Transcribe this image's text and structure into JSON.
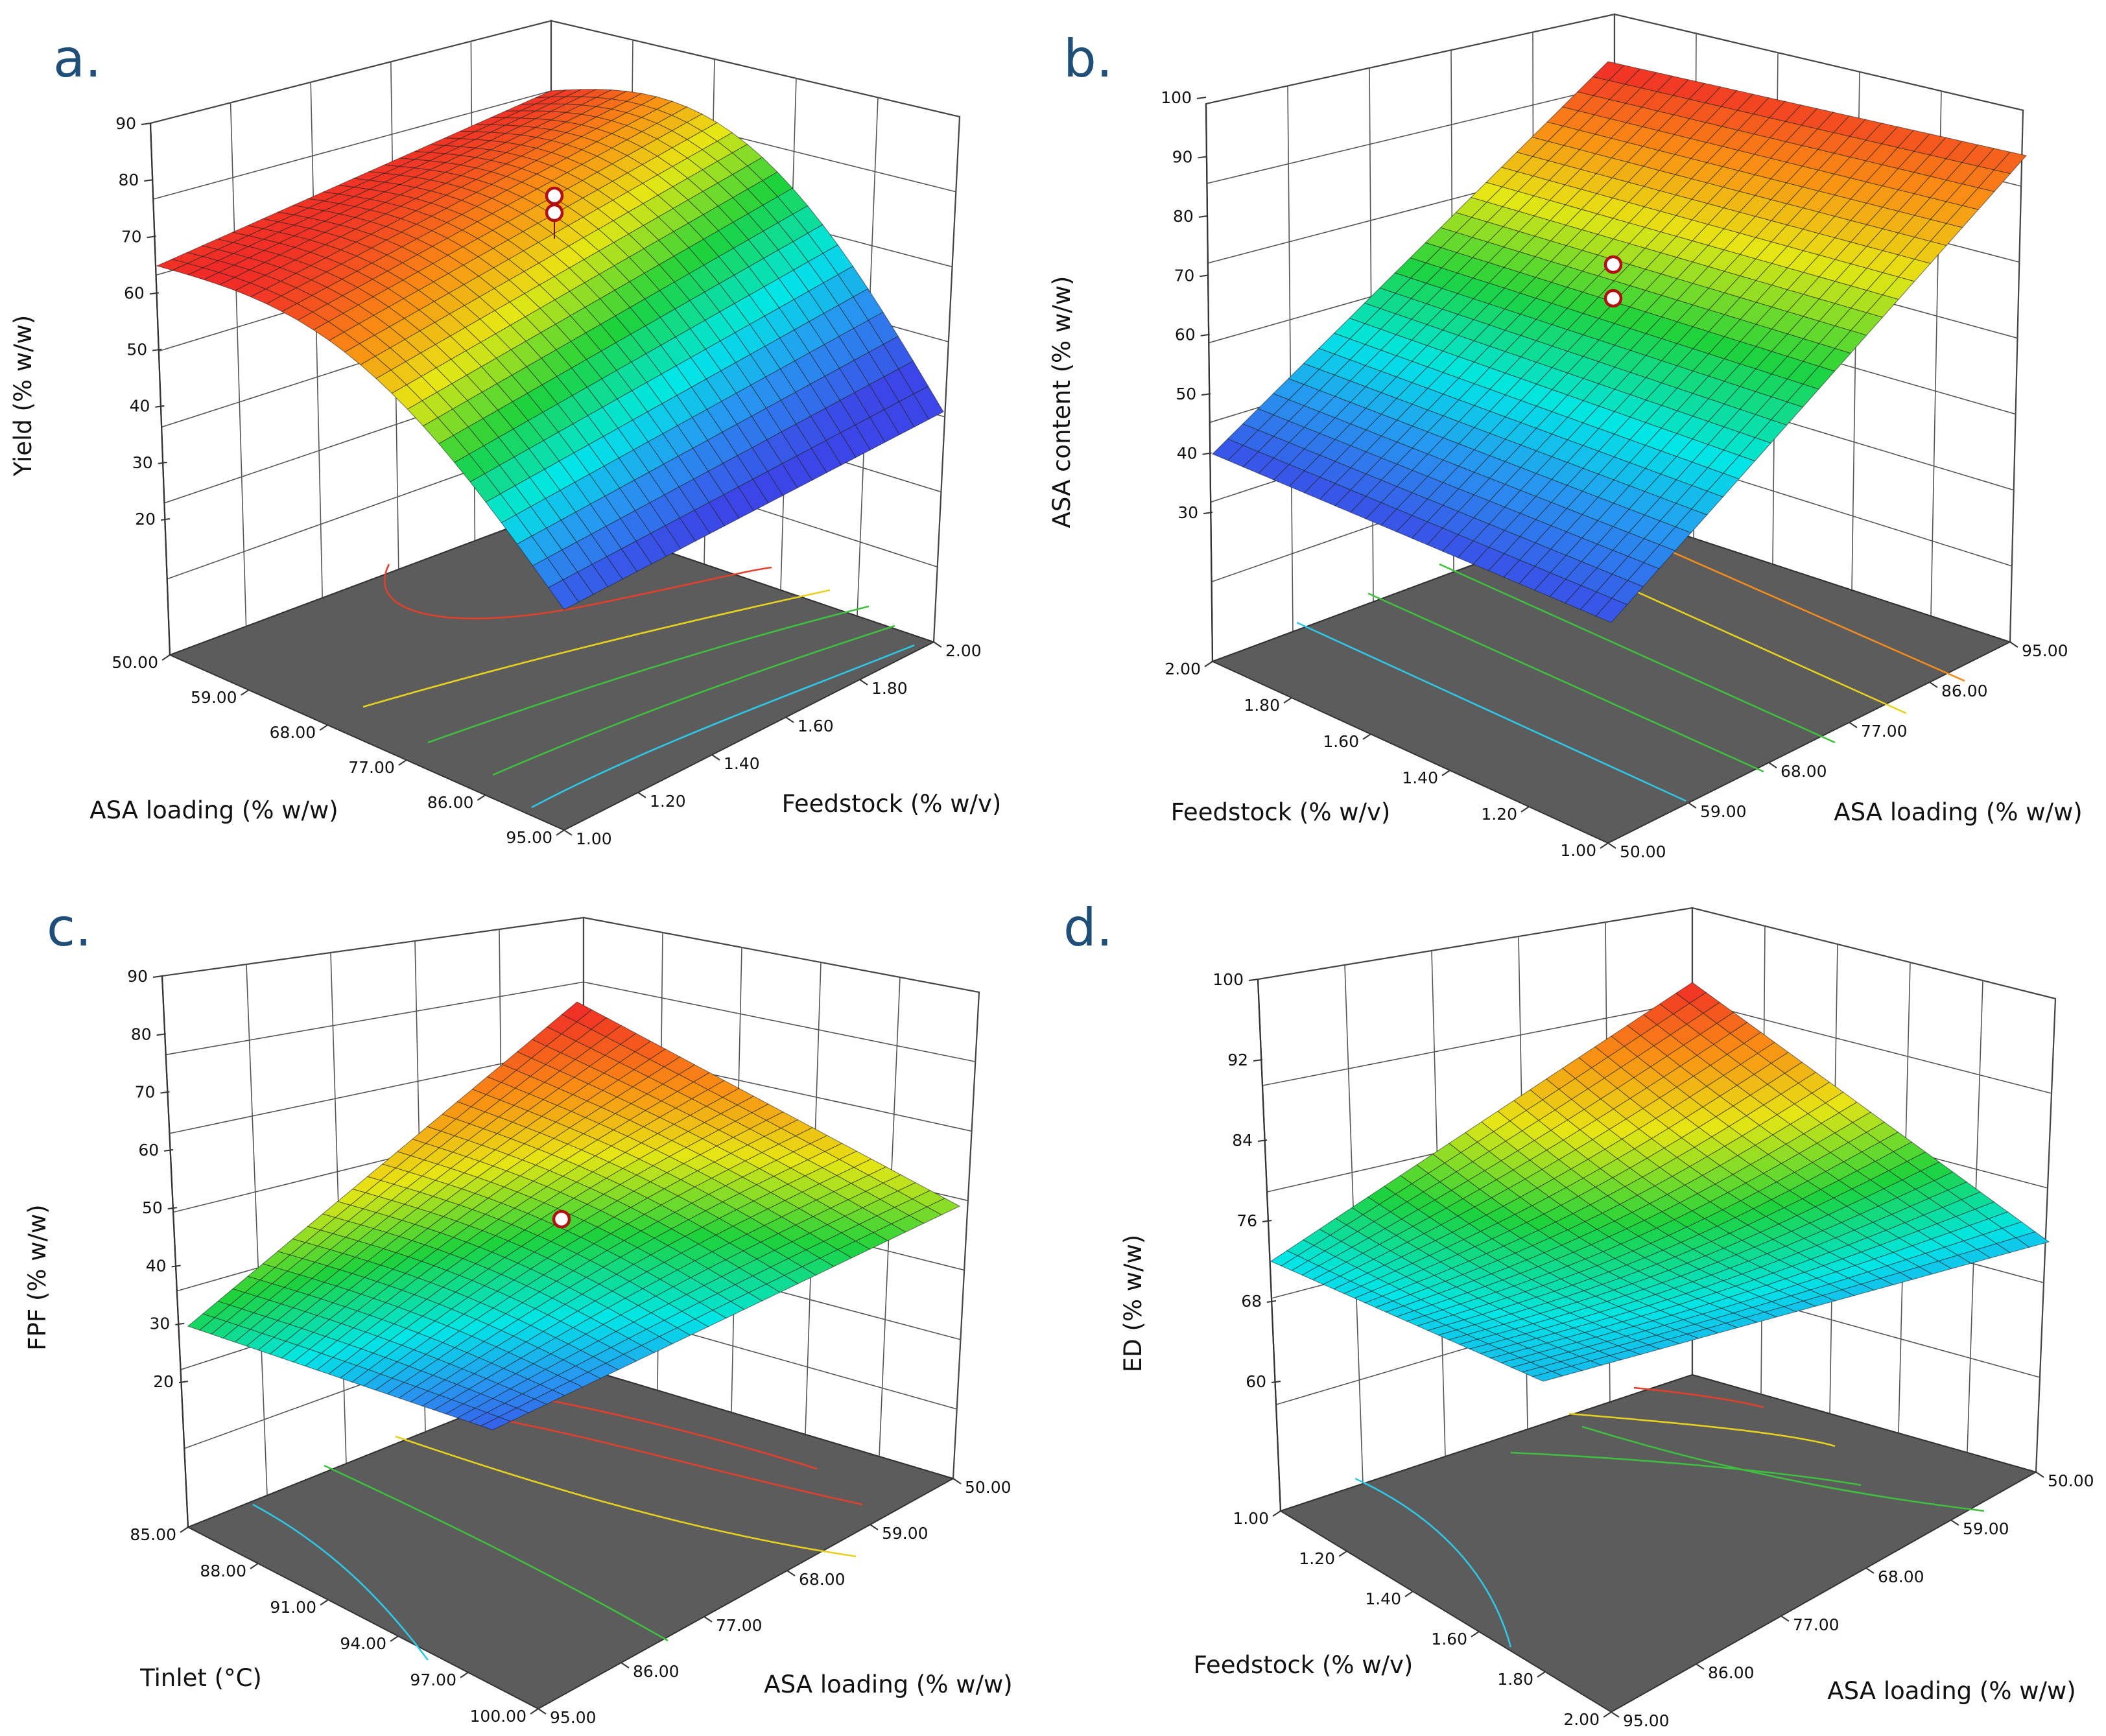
{
  "chart_data": [
    {
      "panel": "a.",
      "type": "surface3d",
      "zlabel": "Yield (% w/w)",
      "z_ticks": [
        "20",
        "30",
        "40",
        "50",
        "60",
        "70",
        "80",
        "90"
      ],
      "x_axis": {
        "label": "ASA loading (% w/w)",
        "ticks": [
          "50.00",
          "59.00",
          "68.00",
          "77.00",
          "86.00",
          "95.00"
        ]
      },
      "y_axis": {
        "label": "Feedstock  (% w/v)",
        "ticks": [
          "1.00",
          "1.20",
          "1.40",
          "1.60",
          "1.80",
          "2.00"
        ]
      },
      "zlim": [
        20,
        90
      ],
      "design_points": [
        76,
        73
      ]
    },
    {
      "panel": "b.",
      "type": "surface3d",
      "zlabel": "ASA content (% w/w)",
      "z_ticks": [
        "30",
        "40",
        "50",
        "60",
        "70",
        "80",
        "90",
        "100"
      ],
      "x_axis": {
        "label": "Feedstock  (% w/v)",
        "ticks": [
          "2.00",
          "1.80",
          "1.60",
          "1.40",
          "1.20",
          "1.00"
        ]
      },
      "y_axis": {
        "label": "ASA loading (% w/w)",
        "ticks": [
          "50.00",
          "59.00",
          "68.00",
          "77.00",
          "86.00",
          "95.00"
        ]
      },
      "zlim": [
        30,
        100
      ],
      "design_points": [
        73,
        67
      ]
    },
    {
      "panel": "c.",
      "type": "surface3d",
      "zlabel": "FPF (% w/w)",
      "z_ticks": [
        "20",
        "30",
        "40",
        "50",
        "60",
        "70",
        "80",
        "90"
      ],
      "x_axis": {
        "label": "Tinlet (°C)",
        "ticks": [
          "85.00",
          "88.00",
          "91.00",
          "94.00",
          "97.00",
          "100.00"
        ]
      },
      "y_axis": {
        "label": "ASA loading (% w/w)",
        "ticks": [
          "95.00",
          "86.00",
          "77.00",
          "68.00",
          "59.00",
          "50.00"
        ]
      },
      "zlim": [
        20,
        90
      ],
      "design_points": [
        48
      ]
    },
    {
      "panel": "d.",
      "type": "surface3d",
      "zlabel": "ED (% w/w)",
      "z_ticks": [
        "60",
        "68",
        "76",
        "84",
        "92",
        "100"
      ],
      "x_axis": {
        "label": "Feedstock  (% w/v)",
        "ticks": [
          "1.00",
          "1.20",
          "1.40",
          "1.60",
          "1.80",
          "2.00"
        ]
      },
      "y_axis": {
        "label": "ASA loading (% w/w)",
        "ticks": [
          "95.00",
          "86.00",
          "77.00",
          "68.00",
          "59.00",
          "50.00"
        ]
      },
      "zlim": [
        60,
        100
      ],
      "design_points": []
    }
  ]
}
